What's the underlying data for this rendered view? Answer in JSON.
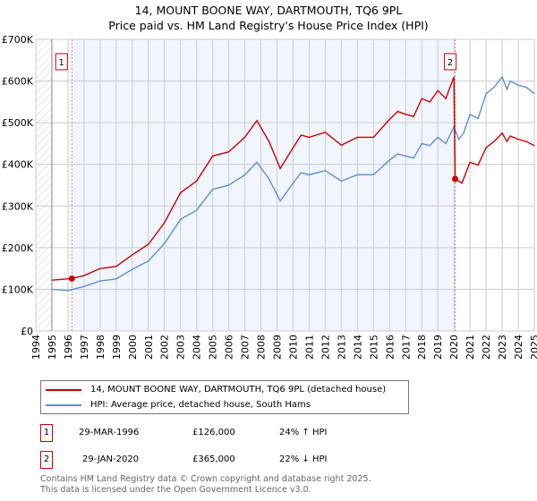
{
  "chart_data": {
    "type": "line",
    "title": "14, MOUNT BOONE WAY, DARTMOUTH, TQ6 9PL",
    "subtitle": "Price paid vs. HM Land Registry's House Price Index (HPI)",
    "xlim": [
      1994,
      2025
    ],
    "ylim": [
      0,
      700000
    ],
    "yticks": [
      "£0",
      "£100K",
      "£200K",
      "£300K",
      "£400K",
      "£500K",
      "£600K",
      "£700K"
    ],
    "xticks": [
      "1994",
      "1995",
      "1996",
      "1997",
      "1998",
      "1999",
      "2000",
      "2001",
      "2002",
      "2003",
      "2004",
      "2005",
      "2006",
      "2007",
      "2008",
      "2009",
      "2010",
      "2011",
      "2012",
      "2013",
      "2014",
      "2015",
      "2016",
      "2017",
      "2018",
      "2019",
      "2020",
      "2021",
      "2022",
      "2023",
      "2024",
      "2025"
    ],
    "series": [
      {
        "name": "14, MOUNT BOONE WAY, DARTMOUTH, TQ6 9PL (detached house)",
        "color": "#cc0000",
        "x": [
          1995,
          1996.24,
          1997,
          1998,
          1999,
          2000,
          2001,
          2002,
          2003,
          2004,
          2005,
          2006,
          2007,
          2007.75,
          2008.5,
          2009.2,
          2010,
          2010.5,
          2011,
          2012,
          2013,
          2014,
          2015,
          2016,
          2016.5,
          2017,
          2017.5,
          2018,
          2018.5,
          2019,
          2019.5,
          2020.0,
          2020.08,
          2020.5,
          2021,
          2021.5,
          2022,
          2022.5,
          2023,
          2023.3,
          2023.5,
          2024,
          2024.5,
          2025
        ],
        "y": [
          122,
          126,
          133,
          150,
          155,
          183,
          208,
          260,
          332,
          360,
          420,
          430,
          465,
          505,
          455,
          390,
          440,
          470,
          465,
          477,
          446,
          465,
          465,
          508,
          527,
          520,
          515,
          558,
          550,
          577,
          558,
          610,
          365,
          355,
          405,
          398,
          440,
          455,
          475,
          455,
          468,
          460,
          455,
          445
        ]
      },
      {
        "name": "HPI: Average price, detached house, South Hams",
        "color": "#5b8fd6",
        "x": [
          1995,
          1996,
          1997,
          1998,
          1999,
          2000,
          2001,
          2002,
          2003,
          2004,
          2005,
          2006,
          2007,
          2007.75,
          2008.5,
          2009.2,
          2010,
          2010.5,
          2011,
          2012,
          2013,
          2014,
          2015,
          2016,
          2016.5,
          2017,
          2017.5,
          2018,
          2018.5,
          2019,
          2019.5,
          2020,
          2020.3,
          2020.6,
          2021,
          2021.5,
          2022,
          2022.5,
          2023,
          2023.3,
          2023.5,
          2024,
          2024.5,
          2025
        ],
        "y": [
          100,
          97,
          107,
          120,
          125,
          148,
          168,
          210,
          268,
          290,
          340,
          350,
          375,
          405,
          365,
          312,
          355,
          380,
          375,
          385,
          360,
          375,
          375,
          410,
          425,
          420,
          415,
          450,
          445,
          465,
          450,
          490,
          460,
          475,
          520,
          510,
          570,
          585,
          610,
          580,
          600,
          590,
          585,
          570
        ]
      }
    ],
    "y_units": "thousands GBP",
    "sales": [
      {
        "label": "1",
        "x": 1996.24,
        "y": 126
      },
      {
        "label": "2",
        "x": 2020.08,
        "y": 365
      }
    ]
  },
  "legend": {
    "red": "14, MOUNT BOONE WAY, DARTMOUTH, TQ6 9PL (detached house)",
    "blue": "HPI: Average price, detached house, South Hams"
  },
  "transactions": [
    {
      "num": "1",
      "date": "29-MAR-1996",
      "price": "£126,000",
      "hpi": "24% ↑ HPI"
    },
    {
      "num": "2",
      "date": "29-JAN-2020",
      "price": "£365,000",
      "hpi": "22% ↓ HPI"
    }
  ],
  "footer": {
    "line1": "Contains HM Land Registry data © Crown copyright and database right 2025.",
    "line2": "This data is licensed under the Open Government Licence v3.0."
  }
}
